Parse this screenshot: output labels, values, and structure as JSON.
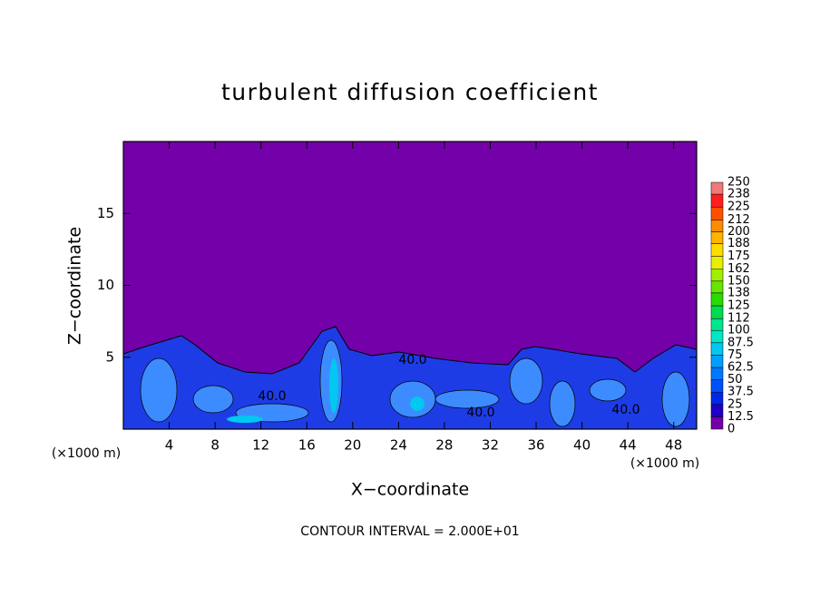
{
  "chart_data": {
    "type": "field",
    "title": "turbulent diffusion coefficient",
    "xlabel": "X−coordinate",
    "ylabel": "Z−coordinate",
    "xunit": "(×1000 m)",
    "footer": "CONTOUR INTERVAL = 2.000E+01",
    "xlim": [
      0,
      50
    ],
    "ylim": [
      0,
      20
    ],
    "xticks": [
      4,
      8,
      12,
      16,
      20,
      24,
      28,
      32,
      36,
      40,
      44,
      48
    ],
    "yticks": [
      5,
      10,
      15
    ],
    "contour_labels": [
      "40.0",
      "40.0",
      "40.0",
      "40.0"
    ],
    "colorbar": {
      "levels": [
        0,
        12.5,
        25,
        37.5,
        50,
        62.5,
        75,
        87.5,
        100,
        112,
        125,
        138,
        150,
        162,
        175,
        188,
        200,
        212,
        225,
        238,
        250
      ],
      "colors": [
        "#7300a8",
        "#1e00c8",
        "#0028e6",
        "#0050ff",
        "#0078ff",
        "#00a0ff",
        "#00c8f0",
        "#00e6c8",
        "#00e68c",
        "#00dc50",
        "#28dc00",
        "#64e600",
        "#a0f000",
        "#e6f000",
        "#ffdc00",
        "#ffb400",
        "#ff8c00",
        "#ff5000",
        "#ff1e1e",
        "#f07878"
      ]
    }
  }
}
